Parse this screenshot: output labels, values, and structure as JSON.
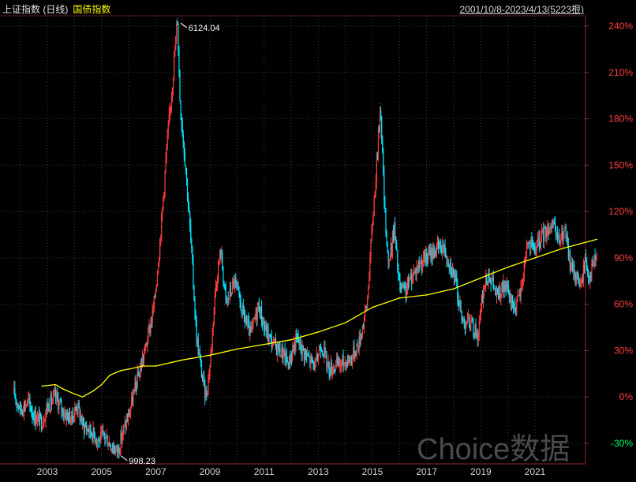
{
  "header": {
    "index_name": "上证指数 (日线)",
    "bond_index_name": "国债指数",
    "date_range": "2001/10/8-2023/4/13(5223根)"
  },
  "watermark": "Choice数据",
  "colors": {
    "background": "#000000",
    "candle_up": "#ff3b3b",
    "candle_down": "#00e5ff",
    "bond_line": "#ffff00",
    "grid": "#4a3a3a",
    "axis_text": "#ff4040",
    "negative_tick": "#00ff66",
    "annotation": "#ffffff"
  },
  "chart_data": {
    "type": "line",
    "x_range": [
      2001.77,
      2023.28
    ],
    "ylim": [
      -35,
      246
    ],
    "y_ticks": [
      240,
      210,
      180,
      150,
      120,
      90,
      60,
      30,
      0,
      -30
    ],
    "y_tick_labels": [
      "240%",
      "210%",
      "180%",
      "150%",
      "120%",
      "90%",
      "60%",
      "30%",
      "0%",
      "-30%"
    ],
    "x_ticks": [
      2003,
      2005,
      2007,
      2009,
      2011,
      2013,
      2015,
      2017,
      2019,
      2021
    ],
    "x_tick_labels": [
      "2003",
      "2005",
      "2007",
      "2009",
      "2011",
      "2013",
      "2015",
      "2017",
      "2019",
      "2021"
    ],
    "grid": true,
    "series": [
      {
        "name": "上证指数 (日线)",
        "style": "candlestick",
        "x": [
          2001.77,
          2002.0,
          2002.3,
          2002.5,
          2002.8,
          2003.0,
          2003.3,
          2003.6,
          2003.9,
          2004.1,
          2004.3,
          2004.6,
          2004.9,
          2005.1,
          2005.4,
          2005.6,
          2005.8,
          2006.0,
          2006.3,
          2006.6,
          2006.9,
          2007.0,
          2007.2,
          2007.4,
          2007.6,
          2007.8,
          2007.9,
          2008.1,
          2008.3,
          2008.5,
          2008.7,
          2008.85,
          2009.0,
          2009.2,
          2009.4,
          2009.6,
          2009.9,
          2010.2,
          2010.5,
          2010.8,
          2011.0,
          2011.3,
          2011.6,
          2011.9,
          2012.2,
          2012.5,
          2012.9,
          2013.1,
          2013.4,
          2013.6,
          2013.9,
          2014.2,
          2014.5,
          2014.8,
          2014.95,
          2015.15,
          2015.3,
          2015.45,
          2015.6,
          2015.8,
          2016.0,
          2016.2,
          2016.5,
          2016.8,
          2017.0,
          2017.3,
          2017.6,
          2017.9,
          2018.1,
          2018.3,
          2018.6,
          2018.9,
          2019.1,
          2019.3,
          2019.6,
          2019.9,
          2020.1,
          2020.3,
          2020.5,
          2020.7,
          2021.0,
          2021.3,
          2021.6,
          2021.9,
          2022.1,
          2022.3,
          2022.5,
          2022.7,
          2022.85,
          2023.0,
          2023.28
        ],
        "values": [
          2,
          -8,
          -3,
          -12,
          -16,
          -6,
          0,
          -10,
          -14,
          -5,
          -18,
          -22,
          -28,
          -25,
          -32,
          -35,
          -22,
          -12,
          10,
          30,
          55,
          70,
          110,
          160,
          200,
          245,
          190,
          150,
          100,
          40,
          15,
          0,
          20,
          70,
          95,
          60,
          75,
          55,
          40,
          60,
          45,
          35,
          30,
          22,
          38,
          28,
          20,
          35,
          18,
          20,
          22,
          25,
          35,
          60,
          100,
          150,
          190,
          120,
          85,
          110,
          70,
          68,
          80,
          88,
          90,
          95,
          98,
          85,
          72,
          50,
          48,
          40,
          70,
          80,
          65,
          72,
          62,
          58,
          70,
          100,
          95,
          105,
          112,
          100,
          108,
          85,
          80,
          72,
          90,
          78,
          92
        ]
      },
      {
        "name": "国债指数",
        "style": "line",
        "x": [
          2002.8,
          2003.3,
          2003.6,
          2004.0,
          2004.3,
          2004.7,
          2005.0,
          2005.3,
          2005.7,
          2006.0,
          2006.5,
          2007.0,
          2008.0,
          2009.0,
          2010.0,
          2011.0,
          2012.0,
          2013.0,
          2014.0,
          2015.0,
          2016.0,
          2017.0,
          2018.0,
          2019.0,
          2020.0,
          2021.0,
          2022.0,
          2023.28
        ],
        "values": [
          7,
          8,
          5,
          2,
          0,
          4,
          8,
          14,
          17,
          18,
          20,
          20,
          24,
          27,
          31,
          34,
          37,
          42,
          48,
          58,
          64,
          66,
          70,
          77,
          84,
          90,
          96,
          102
        ]
      }
    ],
    "annotations": [
      {
        "label": "6124.04",
        "x": 2007.8,
        "y": 245
      },
      {
        "label": "998.23",
        "x": 2005.6,
        "y": -35
      }
    ]
  }
}
